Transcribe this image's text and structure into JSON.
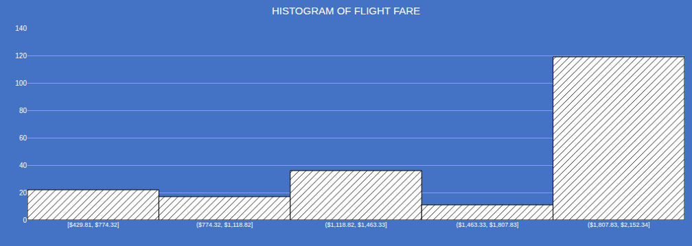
{
  "chart_data": {
    "type": "bar",
    "title": "HISTOGRAM OF FLIGHT FARE",
    "categories": [
      "[$429.81, $774.32]",
      "($774.32, $1,118.82]",
      "($1,118.82, $1,463.33]",
      "($1,463.33, $1,807.83]",
      "($1,807.83, $2,152.34]"
    ],
    "values": [
      22,
      17,
      36,
      11,
      119
    ],
    "color": "#ffffff",
    "ylim": [
      0,
      140
    ],
    "yticks": [
      0,
      20,
      40,
      60,
      80,
      100,
      120,
      140
    ],
    "grid": true
  }
}
